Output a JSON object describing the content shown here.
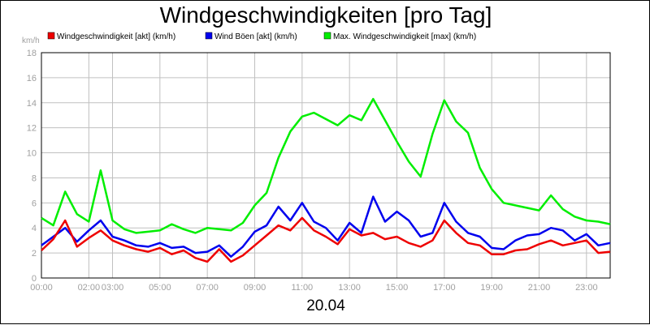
{
  "chart_data": {
    "type": "line",
    "title": "Windgeschwindigkeiten [pro Tag]",
    "date_label": "20.04",
    "ylabel": "km/h",
    "ylim": [
      0,
      18
    ],
    "yticks": [
      0,
      2,
      4,
      6,
      8,
      10,
      12,
      14,
      16,
      18
    ],
    "xlim": [
      0,
      24
    ],
    "xtick_positions": [
      0,
      2,
      3,
      5,
      7,
      9,
      11,
      13,
      15,
      17,
      19,
      21,
      23
    ],
    "xtick_labels": [
      "00:00",
      "02:00",
      "03:00",
      "05:00",
      "07:00",
      "09:00",
      "11:00",
      "13:00",
      "15:00",
      "17:00",
      "19:00",
      "21:00",
      "23:00"
    ],
    "grid": true,
    "legend_position": "top",
    "x_hours": [
      0,
      0.5,
      1,
      1.5,
      2,
      2.5,
      3,
      3.5,
      4,
      4.5,
      5,
      5.5,
      6,
      6.5,
      7,
      7.5,
      8,
      8.5,
      9,
      9.5,
      10,
      10.5,
      11,
      11.5,
      12,
      12.5,
      13,
      13.5,
      14,
      14.5,
      15,
      15.5,
      16,
      16.5,
      17,
      17.5,
      18,
      18.5,
      19,
      19.5,
      20,
      20.5,
      21,
      21.5,
      22,
      22.5,
      23,
      23.5,
      24
    ],
    "series": [
      {
        "name": "Windgeschwindigkeit [akt] (km/h)",
        "color": "#ee0000",
        "values": [
          2.2,
          3.1,
          4.6,
          2.5,
          3.2,
          3.8,
          3.0,
          2.6,
          2.3,
          2.1,
          2.4,
          1.9,
          2.2,
          1.6,
          1.3,
          2.3,
          1.3,
          1.8,
          2.6,
          3.4,
          4.2,
          3.8,
          4.8,
          3.8,
          3.3,
          2.7,
          3.9,
          3.4,
          3.6,
          3.1,
          3.3,
          2.8,
          2.5,
          3.0,
          4.6,
          3.6,
          2.8,
          2.6,
          1.9,
          1.9,
          2.2,
          2.3,
          2.7,
          3.0,
          2.6,
          2.8,
          3.0,
          2.0,
          2.1
        ]
      },
      {
        "name": "Wind Böen [akt] (km/h)",
        "color": "#0000ee",
        "values": [
          2.6,
          3.3,
          4.0,
          2.9,
          3.8,
          4.6,
          3.3,
          3.0,
          2.6,
          2.5,
          2.8,
          2.4,
          2.5,
          2.0,
          2.1,
          2.6,
          1.7,
          2.5,
          3.7,
          4.2,
          5.7,
          4.6,
          6.0,
          4.5,
          4.0,
          3.0,
          4.4,
          3.6,
          6.5,
          4.5,
          5.3,
          4.6,
          3.3,
          3.6,
          6.0,
          4.5,
          3.6,
          3.3,
          2.4,
          2.3,
          3.0,
          3.4,
          3.5,
          4.0,
          3.8,
          3.0,
          3.5,
          2.6,
          2.8
        ]
      },
      {
        "name": "Max. Windgeschwindigkeit [max] (km/h)",
        "color": "#00ee00",
        "values": [
          4.8,
          4.2,
          6.9,
          5.1,
          4.5,
          8.6,
          4.6,
          3.9,
          3.6,
          3.7,
          3.8,
          4.3,
          3.9,
          3.6,
          4.0,
          3.9,
          3.8,
          4.4,
          5.8,
          6.8,
          9.6,
          11.7,
          12.9,
          13.2,
          12.7,
          12.2,
          13.0,
          12.6,
          14.3,
          12.6,
          10.9,
          9.3,
          8.1,
          11.5,
          14.2,
          12.5,
          11.6,
          8.8,
          7.1,
          6.0,
          5.8,
          5.6,
          5.4,
          6.6,
          5.5,
          4.9,
          4.6,
          4.5,
          4.3
        ]
      }
    ]
  }
}
